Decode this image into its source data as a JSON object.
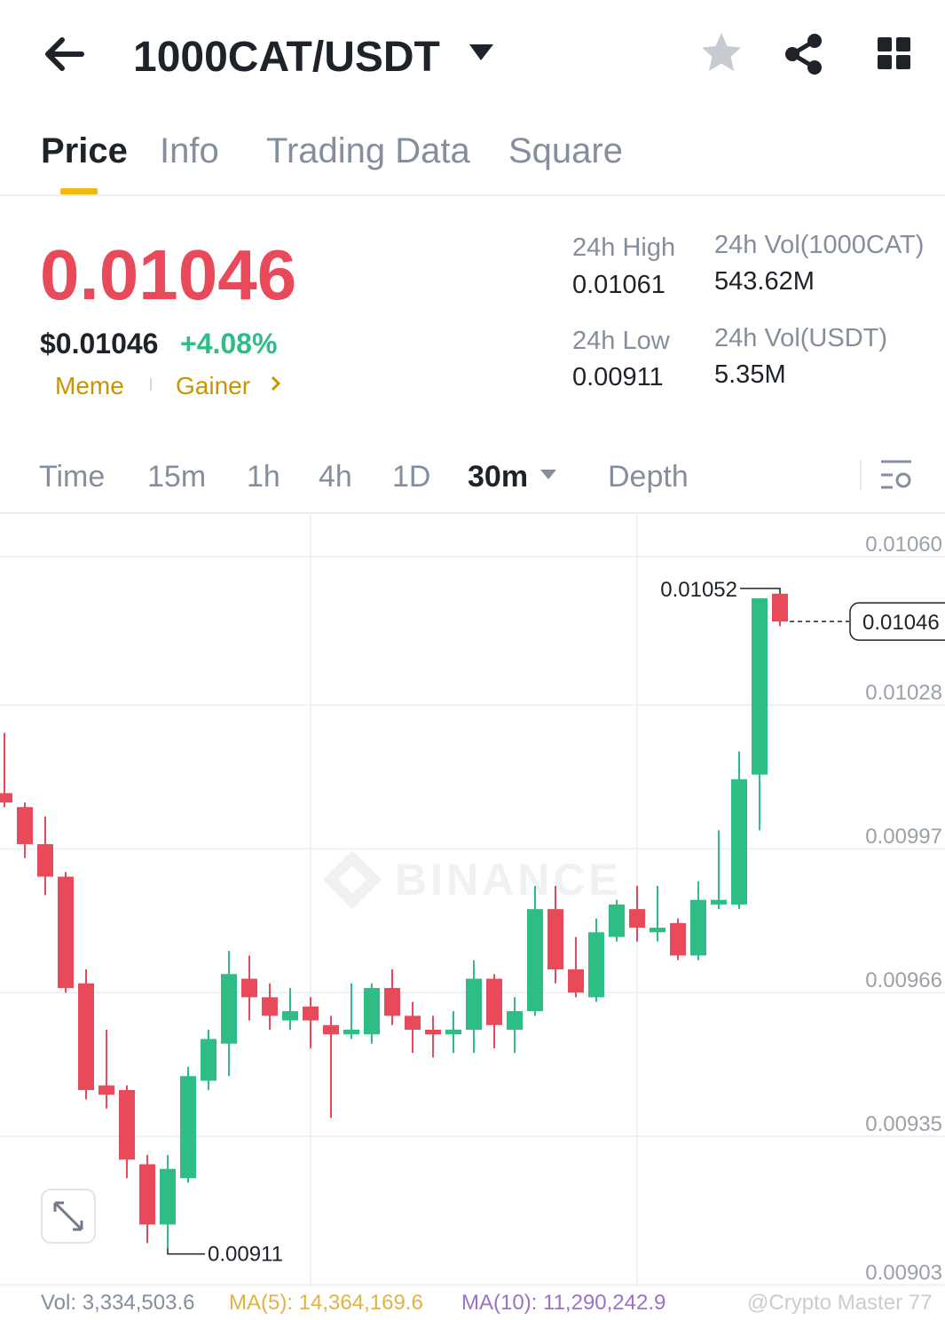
{
  "header": {
    "title": "1000CAT/USDT"
  },
  "tabs": [
    "Price",
    "Info",
    "Trading Data",
    "Square"
  ],
  "price": {
    "last": "0.01046",
    "usd": "$0.01046",
    "change": "+4.08%",
    "tags": [
      "Meme",
      "Gainer"
    ]
  },
  "stats": {
    "high_label": "24h High",
    "high": "0.01061",
    "low_label": "24h Low",
    "low": "0.00911",
    "vol_base_label": "24h Vol(1000CAT)",
    "vol_base": "543.62M",
    "vol_quote_label": "24h Vol(USDT)",
    "vol_quote": "5.35M"
  },
  "intervals": [
    "Time",
    "15m",
    "1h",
    "4h",
    "1D",
    "30m",
    "Depth"
  ],
  "chart_data": {
    "type": "candlestick",
    "watermark": "BINANCE",
    "up_color": "#2ebd85",
    "down_color": "#e84a5a",
    "grid": true,
    "ylim": [
      0.009025,
      0.01069
    ],
    "yticks": [
      {
        "value": 0.0106,
        "label": "0.01060"
      },
      0.01028,
      0.00997,
      0.00966,
      0.00935,
      0.00903
    ],
    "open": [
      0.01009,
      0.01006,
      0.00998,
      0.00991,
      0.00968,
      0.00946,
      0.00945,
      0.00929,
      0.00916,
      0.00926,
      0.00947,
      0.00955,
      0.00969,
      0.00965,
      0.0096,
      0.00963,
      0.00959,
      0.00957,
      0.00957,
      0.00967,
      0.00961,
      0.00958,
      0.00957,
      0.00958,
      0.00969,
      0.00958,
      0.00962,
      0.00984,
      0.00971,
      0.00965,
      0.00978,
      0.00984,
      0.00979,
      0.00981,
      0.00974,
      0.00985,
      0.00985,
      0.01013,
      0.01052
    ],
    "high": [
      0.01022,
      0.01007,
      0.01004,
      0.00992,
      0.00971,
      0.00958,
      0.00946,
      0.00931,
      0.00931,
      0.0095,
      0.00958,
      0.00975,
      0.00974,
      0.00968,
      0.00967,
      0.00965,
      0.00961,
      0.00968,
      0.00968,
      0.00971,
      0.00964,
      0.00961,
      0.00962,
      0.00973,
      0.0097,
      0.00965,
      0.00989,
      0.00989,
      0.00978,
      0.00982,
      0.00986,
      0.00989,
      0.00989,
      0.00982,
      0.0099,
      0.01001,
      0.01018,
      0.01051,
      0.01052
    ],
    "low": [
      0.01006,
      0.00995,
      0.00987,
      0.00966,
      0.00943,
      0.00941,
      0.00926,
      0.00912,
      0.00911,
      0.00925,
      0.00945,
      0.00948,
      0.0096,
      0.00958,
      0.00958,
      0.00954,
      0.00939,
      0.00956,
      0.00955,
      0.00959,
      0.00953,
      0.00952,
      0.00953,
      0.00953,
      0.00954,
      0.00953,
      0.00961,
      0.00968,
      0.00965,
      0.00964,
      0.00977,
      0.00977,
      0.00977,
      0.00973,
      0.00973,
      0.00984,
      0.00984,
      0.01001,
      0.01045
    ],
    "close": [
      0.01007,
      0.00998,
      0.00991,
      0.00967,
      0.00945,
      0.00944,
      0.0093,
      0.00916,
      0.00928,
      0.00948,
      0.00956,
      0.0097,
      0.00965,
      0.00961,
      0.00962,
      0.0096,
      0.00957,
      0.00958,
      0.00967,
      0.00961,
      0.00958,
      0.00957,
      0.00958,
      0.00969,
      0.00959,
      0.00962,
      0.00984,
      0.00971,
      0.00966,
      0.00979,
      0.00985,
      0.0098,
      0.0098,
      0.00974,
      0.00986,
      0.00986,
      0.01012,
      0.01051,
      0.01046
    ]
  },
  "footer": {
    "vol": "Vol: 3,334,503.6",
    "ma5": "MA(5): 14,364,169.6",
    "ma10": "MA(10): 11,290,242.9",
    "credit": "@Crypto Master 77"
  }
}
